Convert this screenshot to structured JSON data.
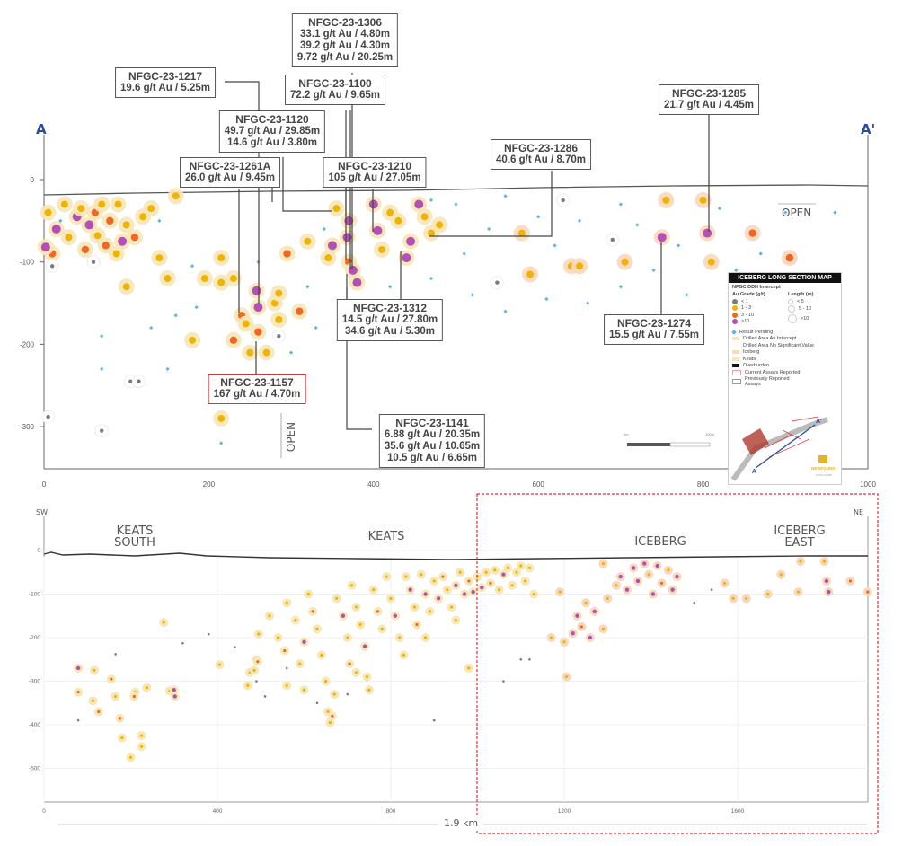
{
  "colors": {
    "lt1": "#7a7a7a",
    "g1_3": "#f0b400",
    "g3_10": "#f26522",
    "gt10": "#b44fb4",
    "pending": "#5bb6e8",
    "halo_keats": "#f6e7b6",
    "halo_iceberg": "#f8d8bc",
    "overburden": "#444444",
    "section_letters": "#2b4aa0",
    "highlight": "#e03030"
  },
  "top_section": {
    "label_a": "A",
    "label_a_prime": "A'",
    "x_ticks": [
      "0",
      "200",
      "400",
      "600",
      "800",
      "1000"
    ],
    "y_ticks": [
      "0",
      "-100",
      "-200",
      "-300"
    ],
    "open_right": "OPEN",
    "open_bottom": "OPEN",
    "scale_bar": {
      "start": "0m",
      "end": "100m"
    },
    "callouts": [
      {
        "hole": "NFGC-23-1306",
        "lines": [
          "33.1 g/t Au / 4.80m",
          "39.2 g/t Au / 4.30m",
          "9.72 g/t Au / 20.25m"
        ]
      },
      {
        "hole": "NFGC-23-1217",
        "lines": [
          "19.6 g/t Au / 5.25m"
        ]
      },
      {
        "hole": "NFGC-23-1100",
        "lines": [
          "72.2 g/t Au / 9.65m"
        ]
      },
      {
        "hole": "NFGC-23-1120",
        "lines": [
          "49.7 g/t Au / 29.85m",
          "14.6 g/t Au / 3.80m"
        ]
      },
      {
        "hole": "NFGC-23-1261A",
        "lines": [
          "26.0 g/t Au / 9.45m"
        ]
      },
      {
        "hole": "NFGC-23-1210",
        "lines": [
          "105 g/t Au / 27.05m"
        ]
      },
      {
        "hole": "NFGC-23-1286",
        "lines": [
          "40.6 g/t Au / 8.70m"
        ]
      },
      {
        "hole": "NFGC-23-1285",
        "lines": [
          "21.7 g/t Au / 4.45m"
        ]
      },
      {
        "hole": "NFGC-23-1312",
        "lines": [
          "14.5 g/t Au / 27.80m",
          "34.6 g/t Au / 5.30m"
        ]
      },
      {
        "hole": "NFGC-23-1274",
        "lines": [
          "15.5 g/t Au / 7.55m"
        ]
      },
      {
        "hole": "NFGC-23-1157",
        "lines": [
          "167 g/t  Au / 4.70m"
        ]
      },
      {
        "hole": "NFGC-23-1141",
        "lines": [
          "6.88 g/t Au / 20.35m",
          "35.6 g/t Au / 10.65m",
          "10.5 g/t Au / 6.65m"
        ]
      }
    ],
    "points": [
      [
        5,
        -40,
        "y"
      ],
      [
        15,
        -60,
        "p"
      ],
      [
        40,
        -45,
        "p"
      ],
      [
        45,
        -35,
        "y"
      ],
      [
        55,
        -55,
        "p"
      ],
      [
        62,
        -40,
        "o"
      ],
      [
        70,
        -30,
        "y"
      ],
      [
        80,
        -50,
        "o"
      ],
      [
        90,
        -30,
        "y"
      ],
      [
        100,
        -55,
        "y"
      ],
      [
        110,
        -70,
        "o"
      ],
      [
        95,
        -75,
        "p"
      ],
      [
        75,
        -80,
        "o"
      ],
      [
        50,
        -85,
        "o"
      ],
      [
        30,
        -70,
        "y"
      ],
      [
        10,
        -90,
        "o"
      ],
      [
        2,
        -82,
        "p"
      ],
      [
        120,
        -45,
        "y"
      ],
      [
        130,
        -35,
        "y"
      ],
      [
        140,
        -95,
        "y"
      ],
      [
        160,
        -20,
        "y"
      ],
      [
        88,
        -90,
        "y"
      ],
      [
        65,
        -68,
        "y"
      ],
      [
        25,
        -30,
        "y"
      ],
      [
        215,
        -95,
        "y"
      ],
      [
        215,
        -125,
        "y"
      ],
      [
        240,
        -165,
        "o"
      ],
      [
        245,
        -175,
        "y"
      ],
      [
        230,
        -195,
        "o"
      ],
      [
        250,
        -210,
        "y"
      ],
      [
        270,
        -210,
        "y"
      ],
      [
        260,
        -185,
        "o"
      ],
      [
        258,
        -135,
        "p"
      ],
      [
        260,
        -155,
        "p"
      ],
      [
        280,
        -150,
        "y"
      ],
      [
        285,
        -138,
        "y"
      ],
      [
        295,
        -90,
        "o"
      ],
      [
        285,
        -170,
        "y"
      ],
      [
        310,
        -160,
        "o"
      ],
      [
        320,
        -75,
        "y"
      ],
      [
        345,
        -95,
        "y"
      ],
      [
        350,
        -80,
        "p"
      ],
      [
        355,
        -35,
        "y"
      ],
      [
        370,
        -50,
        "p"
      ],
      [
        368,
        -70,
        "p"
      ],
      [
        370,
        -100,
        "o"
      ],
      [
        375,
        -110,
        "p"
      ],
      [
        380,
        -125,
        "p"
      ],
      [
        400,
        -30,
        "p"
      ],
      [
        405,
        -62,
        "p"
      ],
      [
        410,
        -85,
        "y"
      ],
      [
        420,
        -40,
        "y"
      ],
      [
        430,
        -50,
        "y"
      ],
      [
        440,
        -95,
        "p"
      ],
      [
        445,
        -75,
        "p"
      ],
      [
        455,
        -30,
        "p"
      ],
      [
        462,
        -45,
        "y"
      ],
      [
        470,
        -65,
        "y"
      ],
      [
        480,
        -55,
        "y"
      ],
      [
        180,
        -195,
        "y"
      ],
      [
        215,
        -290,
        "y"
      ],
      [
        195,
        -120,
        "y"
      ],
      [
        150,
        -120,
        "y"
      ],
      [
        100,
        -130,
        "y"
      ],
      [
        230,
        -120,
        "y"
      ],
      [
        590,
        -115,
        "y"
      ],
      [
        580,
        -65,
        "y"
      ],
      [
        640,
        -105,
        "y"
      ],
      [
        650,
        -105,
        "y"
      ],
      [
        705,
        -100,
        "y"
      ],
      [
        750,
        -70,
        "p"
      ],
      [
        755,
        -25,
        "y"
      ],
      [
        800,
        -25,
        "y"
      ],
      [
        805,
        -65,
        "p"
      ],
      [
        810,
        -100,
        "y"
      ],
      [
        860,
        -65,
        "o"
      ],
      [
        905,
        -95,
        "o"
      ],
      [
        10,
        -105,
        "g"
      ],
      [
        60,
        -100,
        "g"
      ],
      [
        105,
        -245,
        "g"
      ],
      [
        115,
        -245,
        "g"
      ],
      [
        70,
        -305,
        "g"
      ],
      [
        5,
        -288,
        "g"
      ],
      [
        550,
        -125,
        "g"
      ],
      [
        690,
        -73,
        "g"
      ],
      [
        285,
        -190,
        "g"
      ],
      [
        630,
        -25,
        "g"
      ],
      [
        20,
        -50,
        "b"
      ],
      [
        140,
        -50,
        "b"
      ],
      [
        180,
        -105,
        "b"
      ],
      [
        130,
        -180,
        "b"
      ],
      [
        70,
        -190,
        "b"
      ],
      [
        70,
        -230,
        "b"
      ],
      [
        150,
        -230,
        "b"
      ],
      [
        185,
        -155,
        "b"
      ],
      [
        160,
        -165,
        "b"
      ],
      [
        300,
        -210,
        "b"
      ],
      [
        320,
        -130,
        "b"
      ],
      [
        330,
        -180,
        "b"
      ],
      [
        340,
        -60,
        "b"
      ],
      [
        390,
        -150,
        "b"
      ],
      [
        420,
        -130,
        "b"
      ],
      [
        470,
        -120,
        "b"
      ],
      [
        500,
        -30,
        "b"
      ],
      [
        510,
        -90,
        "b"
      ],
      [
        520,
        -140,
        "b"
      ],
      [
        540,
        -60,
        "b"
      ],
      [
        560,
        -20,
        "b"
      ],
      [
        560,
        -160,
        "b"
      ],
      [
        600,
        -45,
        "b"
      ],
      [
        610,
        -145,
        "b"
      ],
      [
        620,
        -80,
        "b"
      ],
      [
        650,
        -50,
        "b"
      ],
      [
        660,
        -150,
        "b"
      ],
      [
        700,
        -130,
        "b"
      ],
      [
        700,
        -30,
        "b"
      ],
      [
        720,
        -55,
        "b"
      ],
      [
        740,
        -110,
        "b"
      ],
      [
        770,
        -80,
        "b"
      ],
      [
        780,
        -140,
        "b"
      ],
      [
        820,
        -35,
        "b"
      ],
      [
        840,
        -110,
        "b"
      ],
      [
        870,
        -90,
        "b"
      ],
      [
        900,
        -40,
        "b"
      ],
      [
        960,
        -40,
        "b"
      ],
      [
        470,
        -25,
        "b"
      ],
      [
        215,
        -320,
        "b"
      ],
      [
        260,
        -100,
        "b"
      ]
    ]
  },
  "bottom_section": {
    "label_sw": "SW",
    "label_ne": "NE",
    "zones": [
      "KEATS\nSOUTH",
      "KEATS",
      "ICEBERG",
      "ICEBERG\nEAST"
    ],
    "x_ticks": [
      "0",
      "400",
      "800",
      "1200",
      "1600"
    ],
    "y_ticks": [
      "0",
      "-100",
      "-200",
      "-300",
      "-400",
      "-500"
    ],
    "length_label": "1.9 km",
    "points": [
      [
        79,
        -270,
        "p"
      ],
      [
        79,
        -325,
        "o"
      ],
      [
        116,
        -275,
        "y"
      ],
      [
        113,
        -345,
        "y"
      ],
      [
        126,
        -370,
        "o"
      ],
      [
        155,
        -295,
        "o"
      ],
      [
        165,
        -335,
        "y"
      ],
      [
        175,
        -385,
        "o"
      ],
      [
        180,
        -430,
        "y"
      ],
      [
        200,
        -475,
        "y"
      ],
      [
        210,
        -325,
        "y"
      ],
      [
        208,
        -335,
        "o"
      ],
      [
        225,
        -425,
        "y"
      ],
      [
        225,
        -450,
        "y"
      ],
      [
        237,
        -315,
        "y"
      ],
      [
        276,
        -165,
        "y"
      ],
      [
        290,
        -322,
        "y"
      ],
      [
        300,
        -320,
        "p"
      ],
      [
        302,
        -335,
        "p"
      ],
      [
        405,
        -262,
        "y"
      ],
      [
        470,
        -310,
        "y"
      ],
      [
        475,
        -280,
        "y"
      ],
      [
        485,
        -275,
        "y"
      ],
      [
        490,
        -250,
        "y"
      ],
      [
        493,
        -255,
        "o"
      ],
      [
        495,
        -192,
        "y"
      ],
      [
        520,
        -150,
        "y"
      ],
      [
        540,
        -200,
        "y"
      ],
      [
        555,
        -230,
        "o"
      ],
      [
        560,
        -120,
        "y"
      ],
      [
        580,
        -160,
        "y"
      ],
      [
        590,
        -260,
        "y"
      ],
      [
        600,
        -210,
        "p"
      ],
      [
        610,
        -100,
        "y"
      ],
      [
        620,
        -140,
        "o"
      ],
      [
        630,
        -180,
        "y"
      ],
      [
        640,
        -240,
        "y"
      ],
      [
        650,
        -300,
        "y"
      ],
      [
        655,
        -370,
        "y"
      ],
      [
        660,
        -395,
        "y"
      ],
      [
        665,
        -380,
        "o"
      ],
      [
        670,
        -330,
        "y"
      ],
      [
        675,
        -110,
        "y"
      ],
      [
        690,
        -150,
        "p"
      ],
      [
        700,
        -200,
        "y"
      ],
      [
        705,
        -260,
        "o"
      ],
      [
        710,
        -80,
        "y"
      ],
      [
        720,
        -130,
        "y"
      ],
      [
        730,
        -170,
        "y"
      ],
      [
        740,
        -220,
        "p"
      ],
      [
        745,
        -290,
        "y"
      ],
      [
        750,
        -320,
        "y"
      ],
      [
        760,
        -90,
        "y"
      ],
      [
        770,
        -140,
        "o"
      ],
      [
        780,
        -180,
        "y"
      ],
      [
        790,
        -60,
        "y"
      ],
      [
        800,
        -110,
        "y"
      ],
      [
        810,
        -150,
        "p"
      ],
      [
        820,
        -200,
        "y"
      ],
      [
        830,
        -240,
        "y"
      ],
      [
        835,
        -60,
        "y"
      ],
      [
        845,
        -90,
        "p"
      ],
      [
        855,
        -130,
        "y"
      ],
      [
        860,
        -170,
        "o"
      ],
      [
        870,
        -55,
        "y"
      ],
      [
        880,
        -100,
        "p"
      ],
      [
        890,
        -140,
        "y"
      ],
      [
        900,
        -70,
        "y"
      ],
      [
        910,
        -110,
        "p"
      ],
      [
        920,
        -60,
        "o"
      ],
      [
        930,
        -90,
        "y"
      ],
      [
        940,
        -130,
        "y"
      ],
      [
        950,
        -80,
        "p"
      ],
      [
        960,
        -50,
        "y"
      ],
      [
        970,
        -100,
        "p"
      ],
      [
        980,
        -70,
        "o"
      ],
      [
        990,
        -95,
        "p"
      ],
      [
        1000,
        -60,
        "y"
      ],
      [
        1010,
        -85,
        "p"
      ],
      [
        1020,
        -50,
        "y"
      ],
      [
        1030,
        -75,
        "o"
      ],
      [
        1040,
        -45,
        "y"
      ],
      [
        1050,
        -90,
        "y"
      ],
      [
        1060,
        -55,
        "p"
      ],
      [
        1070,
        -40,
        "y"
      ],
      [
        1080,
        -80,
        "y"
      ],
      [
        1090,
        -50,
        "y"
      ],
      [
        1100,
        -35,
        "y"
      ],
      [
        1110,
        -70,
        "y"
      ],
      [
        1120,
        -40,
        "y"
      ],
      [
        1130,
        -100,
        "y"
      ],
      [
        880,
        -200,
        "y"
      ],
      [
        950,
        -160,
        "y"
      ],
      [
        980,
        -270,
        "y"
      ],
      [
        720,
        -280,
        "y"
      ],
      [
        600,
        -320,
        "y"
      ],
      [
        560,
        -310,
        "y"
      ],
      [
        1190,
        -95,
        "y"
      ],
      [
        1170,
        -200,
        "y"
      ],
      [
        1200,
        -210,
        "y"
      ],
      [
        1205,
        -290,
        "y"
      ],
      [
        1220,
        -190,
        "p"
      ],
      [
        1230,
        -150,
        "p"
      ],
      [
        1240,
        -175,
        "o"
      ],
      [
        1250,
        -120,
        "y"
      ],
      [
        1260,
        -200,
        "p"
      ],
      [
        1270,
        -140,
        "p"
      ],
      [
        1290,
        -180,
        "y"
      ],
      [
        1300,
        -110,
        "y"
      ],
      [
        1320,
        -80,
        "y"
      ],
      [
        1330,
        -60,
        "p"
      ],
      [
        1345,
        -90,
        "p"
      ],
      [
        1360,
        -40,
        "p"
      ],
      [
        1370,
        -70,
        "p"
      ],
      [
        1385,
        -30,
        "p"
      ],
      [
        1395,
        -55,
        "y"
      ],
      [
        1405,
        -100,
        "p"
      ],
      [
        1415,
        -35,
        "p"
      ],
      [
        1425,
        -75,
        "o"
      ],
      [
        1440,
        -45,
        "y"
      ],
      [
        1450,
        -90,
        "p"
      ],
      [
        1460,
        -60,
        "p"
      ],
      [
        1290,
        -30,
        "y"
      ],
      [
        1570,
        -75,
        "y"
      ],
      [
        1590,
        -110,
        "y"
      ],
      [
        1620,
        -110,
        "y"
      ],
      [
        1670,
        -100,
        "y"
      ],
      [
        1700,
        -55,
        "y"
      ],
      [
        1740,
        -95,
        "y"
      ],
      [
        1745,
        -25,
        "y"
      ],
      [
        1800,
        -25,
        "y"
      ],
      [
        1805,
        -70,
        "p"
      ],
      [
        1810,
        -95,
        "p"
      ],
      [
        1860,
        -70,
        "o"
      ],
      [
        1900,
        -95,
        "o"
      ],
      [
        79,
        -390,
        "g"
      ],
      [
        165,
        -238,
        "g"
      ],
      [
        320,
        -213,
        "g"
      ],
      [
        380,
        -192,
        "g"
      ],
      [
        440,
        -222,
        "g"
      ],
      [
        490,
        -300,
        "g"
      ],
      [
        510,
        -335,
        "g"
      ],
      [
        560,
        -270,
        "g"
      ],
      [
        630,
        -350,
        "g"
      ],
      [
        700,
        -330,
        "g"
      ],
      [
        900,
        -390,
        "g"
      ],
      [
        1060,
        -300,
        "g"
      ],
      [
        1100,
        -250,
        "g"
      ],
      [
        1120,
        -250,
        "g"
      ],
      [
        1540,
        -90,
        "g"
      ],
      [
        1500,
        -120,
        "g"
      ]
    ]
  },
  "legend": {
    "title": "ICEBERG LONG SECTION MAP",
    "subtitle": "NFGC DDH Intercept",
    "grade_header": "Au Grade (g/t)",
    "length_header": "Length (m)",
    "grades": [
      "< 1",
      "1 - 3",
      "3 - 10",
      ">10"
    ],
    "lengths": [
      "< 5",
      "5 - 10",
      ">10"
    ],
    "items": [
      "Result Pending",
      "Drilled Area Au Intercept",
      "Drilled Area No Significant Value",
      "Iceberg",
      "Keats",
      "Overburden",
      "Current Assays Reported",
      "Previously Reported Assays"
    ],
    "map_label_a": "A",
    "map_label_a_prime": "A'",
    "logo_text": "NEWFOUND",
    "logo_subtext": "GOLD CORP"
  }
}
